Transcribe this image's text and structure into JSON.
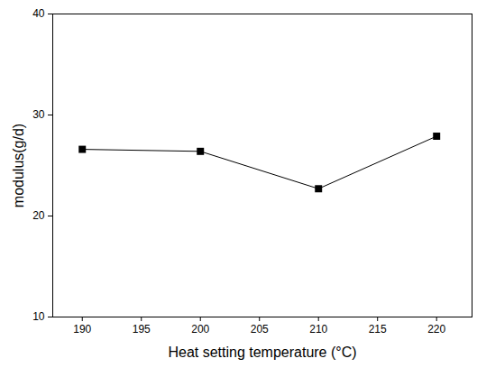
{
  "chart_data": {
    "type": "line",
    "x_label": "Heat setting temperature (°C)",
    "y_label": "modulus(g/d)",
    "x": [
      190,
      200,
      210,
      220
    ],
    "values": [
      26.6,
      26.4,
      22.7,
      27.9
    ],
    "color": "#000000",
    "marker": "square",
    "line_style": "solid",
    "xlim": [
      187.5,
      223
    ],
    "xticks": [
      190,
      195,
      200,
      205,
      210,
      215,
      220
    ],
    "ylim": [
      10,
      40
    ],
    "yticks": [
      10,
      20,
      30,
      40
    ],
    "grid": false
  }
}
